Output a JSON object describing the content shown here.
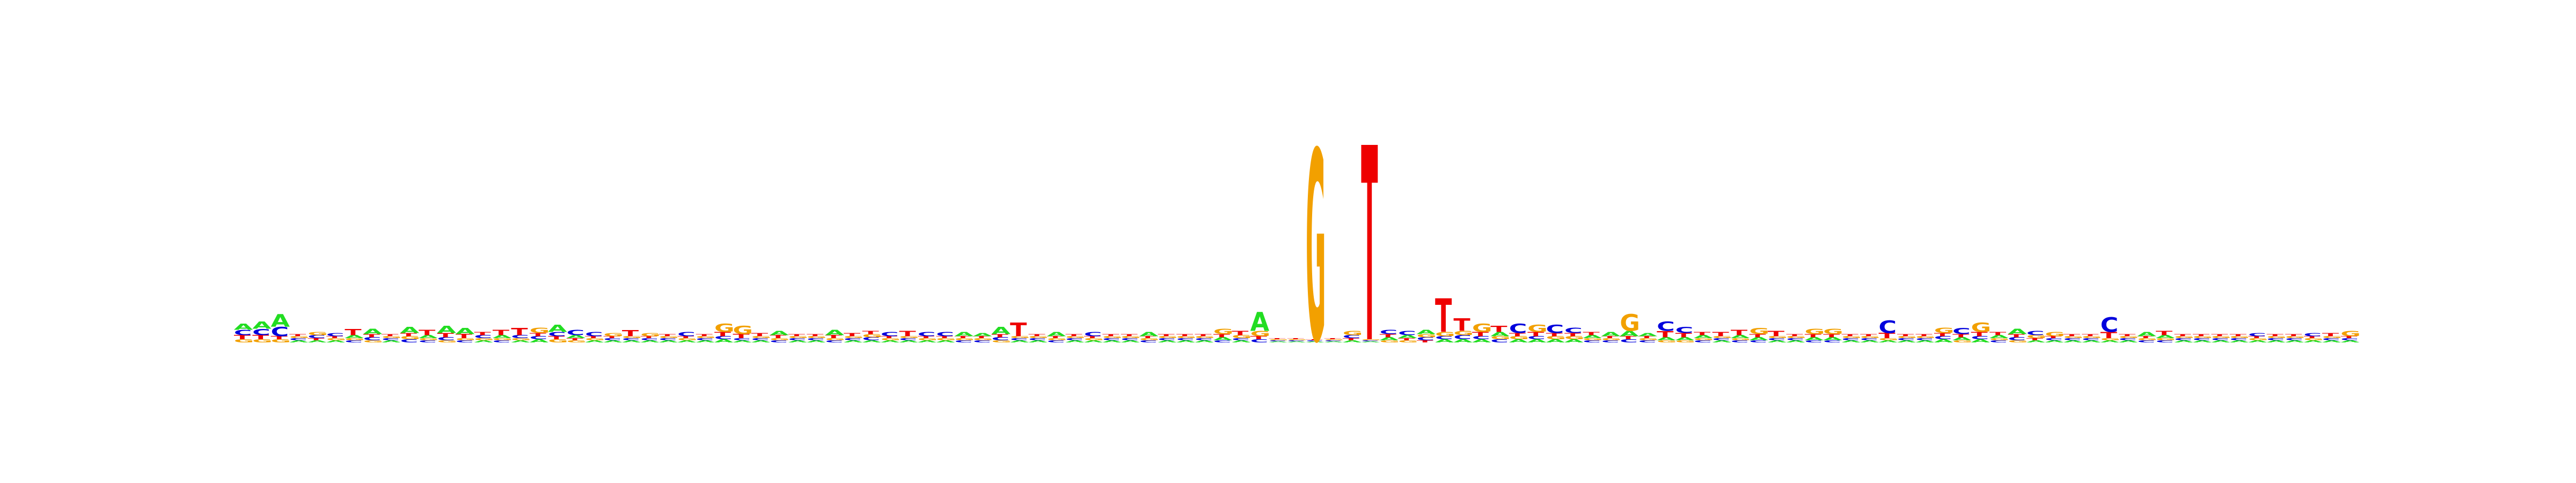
{
  "chart_data": {
    "type": "sequence_logo",
    "title": "",
    "xlabel": "",
    "ylabel": "",
    "alphabet": [
      "A",
      "C",
      "G",
      "T"
    ],
    "colors": {
      "A": "#22dd22",
      "C": "#0000dd",
      "G": "#f2a000",
      "T": "#ee0000"
    },
    "ylim": [
      0,
      2
    ],
    "positions": [
      {
        "pos": 1,
        "letters": {
          "A": 0.06,
          "C": 0.05,
          "G": 0.03,
          "T": 0.04
        }
      },
      {
        "pos": 2,
        "letters": {
          "A": 0.07,
          "C": 0.06,
          "G": 0.03,
          "T": 0.04
        }
      },
      {
        "pos": 3,
        "letters": {
          "A": 0.12,
          "C": 0.09,
          "G": 0.03,
          "T": 0.03
        }
      },
      {
        "pos": 4,
        "letters": {
          "A": 0.02,
          "C": 0.02,
          "G": 0.02,
          "T": 0.02
        }
      },
      {
        "pos": 5,
        "letters": {
          "A": 0.02,
          "C": 0.03,
          "G": 0.03,
          "T": 0.02
        }
      },
      {
        "pos": 6,
        "letters": {
          "A": 0.02,
          "C": 0.03,
          "G": 0.02,
          "T": 0.02
        }
      },
      {
        "pos": 7,
        "letters": {
          "A": 0.03,
          "C": 0.02,
          "G": 0.02,
          "T": 0.06
        }
      },
      {
        "pos": 8,
        "letters": {
          "A": 0.05,
          "C": 0.03,
          "G": 0.02,
          "T": 0.03
        }
      },
      {
        "pos": 9,
        "letters": {
          "A": 0.02,
          "C": 0.02,
          "G": 0.02,
          "T": 0.02
        }
      },
      {
        "pos": 10,
        "letters": {
          "A": 0.06,
          "C": 0.03,
          "G": 0.03,
          "T": 0.03
        }
      },
      {
        "pos": 11,
        "letters": {
          "A": 0.03,
          "C": 0.02,
          "G": 0.02,
          "T": 0.05
        }
      },
      {
        "pos": 12,
        "letters": {
          "A": 0.07,
          "C": 0.03,
          "G": 0.02,
          "T": 0.04
        }
      },
      {
        "pos": 13,
        "letters": {
          "A": 0.06,
          "C": 0.02,
          "G": 0.02,
          "T": 0.04
        }
      },
      {
        "pos": 14,
        "letters": {
          "A": 0.02,
          "C": 0.03,
          "G": 0.02,
          "T": 0.03
        }
      },
      {
        "pos": 15,
        "letters": {
          "A": 0.03,
          "C": 0.02,
          "G": 0.02,
          "T": 0.05
        }
      },
      {
        "pos": 16,
        "letters": {
          "A": 0.02,
          "C": 0.03,
          "G": 0.02,
          "T": 0.07
        }
      },
      {
        "pos": 17,
        "letters": {
          "A": 0.03,
          "C": 0.03,
          "G": 0.05,
          "T": 0.03
        }
      },
      {
        "pos": 18,
        "letters": {
          "A": 0.07,
          "C": 0.04,
          "G": 0.03,
          "T": 0.03
        }
      },
      {
        "pos": 19,
        "letters": {
          "A": 0.03,
          "C": 0.05,
          "G": 0.02,
          "T": 0.02
        }
      },
      {
        "pos": 20,
        "letters": {
          "A": 0.02,
          "C": 0.04,
          "G": 0.02,
          "T": 0.02
        }
      },
      {
        "pos": 21,
        "letters": {
          "A": 0.02,
          "C": 0.02,
          "G": 0.03,
          "T": 0.02
        }
      },
      {
        "pos": 22,
        "letters": {
          "A": 0.02,
          "C": 0.02,
          "G": 0.02,
          "T": 0.06
        }
      },
      {
        "pos": 23,
        "letters": {
          "A": 0.02,
          "C": 0.02,
          "G": 0.03,
          "T": 0.02
        }
      },
      {
        "pos": 24,
        "letters": {
          "A": 0.02,
          "C": 0.02,
          "G": 0.02,
          "T": 0.02
        }
      },
      {
        "pos": 25,
        "letters": {
          "A": 0.02,
          "C": 0.04,
          "G": 0.02,
          "T": 0.02
        }
      },
      {
        "pos": 26,
        "letters": {
          "A": 0.02,
          "C": 0.02,
          "G": 0.02,
          "T": 0.02
        }
      },
      {
        "pos": 27,
        "letters": {
          "A": 0.03,
          "C": 0.03,
          "G": 0.08,
          "T": 0.04
        }
      },
      {
        "pos": 28,
        "letters": {
          "A": 0.02,
          "C": 0.02,
          "G": 0.08,
          "T": 0.04
        }
      },
      {
        "pos": 29,
        "letters": {
          "A": 0.02,
          "C": 0.02,
          "G": 0.02,
          "T": 0.03
        }
      },
      {
        "pos": 30,
        "letters": {
          "A": 0.04,
          "C": 0.02,
          "G": 0.02,
          "T": 0.03
        }
      },
      {
        "pos": 31,
        "letters": {
          "A": 0.02,
          "C": 0.02,
          "G": 0.02,
          "T": 0.02
        }
      },
      {
        "pos": 32,
        "letters": {
          "A": 0.02,
          "C": 0.02,
          "G": 0.02,
          "T": 0.02
        }
      },
      {
        "pos": 33,
        "letters": {
          "A": 0.05,
          "C": 0.02,
          "G": 0.02,
          "T": 0.03
        }
      },
      {
        "pos": 34,
        "letters": {
          "A": 0.02,
          "C": 0.02,
          "G": 0.02,
          "T": 0.03
        }
      },
      {
        "pos": 35,
        "letters": {
          "A": 0.02,
          "C": 0.03,
          "G": 0.03,
          "T": 0.03
        }
      },
      {
        "pos": 36,
        "letters": {
          "A": 0.02,
          "C": 0.04,
          "G": 0.02,
          "T": 0.02
        }
      },
      {
        "pos": 37,
        "letters": {
          "A": 0.02,
          "C": 0.02,
          "G": 0.02,
          "T": 0.05
        }
      },
      {
        "pos": 38,
        "letters": {
          "A": 0.02,
          "C": 0.04,
          "G": 0.02,
          "T": 0.02
        }
      },
      {
        "pos": 39,
        "letters": {
          "A": 0.02,
          "C": 0.04,
          "G": 0.02,
          "T": 0.02
        }
      },
      {
        "pos": 40,
        "letters": {
          "A": 0.04,
          "C": 0.02,
          "G": 0.02,
          "T": 0.02
        }
      },
      {
        "pos": 41,
        "letters": {
          "A": 0.03,
          "C": 0.02,
          "G": 0.02,
          "T": 0.02
        }
      },
      {
        "pos": 42,
        "letters": {
          "A": 0.07,
          "C": 0.03,
          "G": 0.02,
          "T": 0.03
        }
      },
      {
        "pos": 43,
        "letters": {
          "A": 0.02,
          "C": 0.02,
          "G": 0.02,
          "T": 0.13
        }
      },
      {
        "pos": 44,
        "letters": {
          "A": 0.02,
          "C": 0.02,
          "G": 0.02,
          "T": 0.02
        }
      },
      {
        "pos": 45,
        "letters": {
          "A": 0.04,
          "C": 0.02,
          "G": 0.02,
          "T": 0.02
        }
      },
      {
        "pos": 46,
        "letters": {
          "A": 0.02,
          "C": 0.02,
          "G": 0.02,
          "T": 0.02
        }
      },
      {
        "pos": 47,
        "letters": {
          "A": 0.02,
          "C": 0.04,
          "G": 0.02,
          "T": 0.02
        }
      },
      {
        "pos": 48,
        "letters": {
          "A": 0.02,
          "C": 0.02,
          "G": 0.02,
          "T": 0.02
        }
      },
      {
        "pos": 49,
        "letters": {
          "A": 0.02,
          "C": 0.02,
          "G": 0.02,
          "T": 0.02
        }
      },
      {
        "pos": 50,
        "letters": {
          "A": 0.04,
          "C": 0.02,
          "G": 0.02,
          "T": 0.02
        }
      },
      {
        "pos": 51,
        "letters": {
          "A": 0.02,
          "C": 0.02,
          "G": 0.02,
          "T": 0.02
        }
      },
      {
        "pos": 52,
        "letters": {
          "A": 0.02,
          "C": 0.02,
          "G": 0.02,
          "T": 0.02
        }
      },
      {
        "pos": 53,
        "letters": {
          "A": 0.02,
          "C": 0.02,
          "G": 0.02,
          "T": 0.02
        }
      },
      {
        "pos": 54,
        "letters": {
          "A": 0.03,
          "C": 0.02,
          "G": 0.05,
          "T": 0.03
        }
      },
      {
        "pos": 55,
        "letters": {
          "A": 0.02,
          "C": 0.02,
          "G": 0.03,
          "T": 0.04
        }
      },
      {
        "pos": 56,
        "letters": {
          "A": 0.18,
          "C": 0.03,
          "G": 0.05,
          "T": 0.03
        }
      },
      {
        "pos": 57,
        "letters": {
          "A": 0.01,
          "C": 0.01,
          "G": 0.01,
          "T": 0.01
        }
      },
      {
        "pos": 58,
        "letters": {
          "A": 0.01,
          "C": 0.01,
          "G": 0.01,
          "T": 0.01
        }
      },
      {
        "pos": 59,
        "letters": {
          "A": 0.01,
          "C": 0.01,
          "G": 1.82,
          "T": 0.01
        }
      },
      {
        "pos": 60,
        "letters": {
          "A": 0.01,
          "C": 0.01,
          "G": 0.01,
          "T": 0.01
        }
      },
      {
        "pos": 61,
        "letters": {
          "A": 0.02,
          "C": 0.03,
          "G": 0.04,
          "T": 0.02
        }
      },
      {
        "pos": 62,
        "letters": {
          "A": 0.01,
          "C": 0.01,
          "G": 0.01,
          "T": 1.86
        }
      },
      {
        "pos": 63,
        "letters": {
          "A": 0.03,
          "C": 0.04,
          "G": 0.02,
          "T": 0.03
        }
      },
      {
        "pos": 64,
        "letters": {
          "A": 0.03,
          "C": 0.04,
          "G": 0.02,
          "T": 0.02
        }
      },
      {
        "pos": 65,
        "letters": {
          "A": 0.04,
          "C": 0.03,
          "G": 0.03,
          "T": 0.02
        }
      },
      {
        "pos": 66,
        "letters": {
          "A": 0.03,
          "C": 0.03,
          "G": 0.04,
          "T": 0.32
        }
      },
      {
        "pos": 67,
        "letters": {
          "A": 0.03,
          "C": 0.04,
          "G": 0.04,
          "T": 0.12
        }
      },
      {
        "pos": 68,
        "letters": {
          "A": 0.03,
          "C": 0.03,
          "G": 0.08,
          "T": 0.04
        }
      },
      {
        "pos": 69,
        "letters": {
          "A": 0.04,
          "C": 0.03,
          "G": 0.03,
          "T": 0.06
        }
      },
      {
        "pos": 70,
        "letters": {
          "A": 0.03,
          "C": 0.09,
          "G": 0.03,
          "T": 0.03
        }
      },
      {
        "pos": 71,
        "letters": {
          "A": 0.03,
          "C": 0.03,
          "G": 0.07,
          "T": 0.04
        }
      },
      {
        "pos": 72,
        "letters": {
          "A": 0.03,
          "C": 0.08,
          "G": 0.03,
          "T": 0.03
        }
      },
      {
        "pos": 73,
        "letters": {
          "A": 0.03,
          "C": 0.05,
          "G": 0.03,
          "T": 0.03
        }
      },
      {
        "pos": 74,
        "letters": {
          "A": 0.03,
          "C": 0.02,
          "G": 0.02,
          "T": 0.03
        }
      },
      {
        "pos": 75,
        "letters": {
          "A": 0.04,
          "C": 0.02,
          "G": 0.02,
          "T": 0.02
        }
      },
      {
        "pos": 76,
        "letters": {
          "A": 0.05,
          "C": 0.03,
          "G": 0.16,
          "T": 0.03
        }
      },
      {
        "pos": 77,
        "letters": {
          "A": 0.03,
          "C": 0.02,
          "G": 0.02,
          "T": 0.02
        }
      },
      {
        "pos": 78,
        "letters": {
          "A": 0.03,
          "C": 0.09,
          "G": 0.02,
          "T": 0.06
        }
      },
      {
        "pos": 79,
        "letters": {
          "A": 0.03,
          "C": 0.06,
          "G": 0.02,
          "T": 0.04
        }
      },
      {
        "pos": 80,
        "letters": {
          "A": 0.03,
          "C": 0.02,
          "G": 0.02,
          "T": 0.03
        }
      },
      {
        "pos": 81,
        "letters": {
          "A": 0.02,
          "C": 0.02,
          "G": 0.02,
          "T": 0.04
        }
      },
      {
        "pos": 82,
        "letters": {
          "A": 0.03,
          "C": 0.02,
          "G": 0.02,
          "T": 0.05
        }
      },
      {
        "pos": 83,
        "letters": {
          "A": 0.03,
          "C": 0.02,
          "G": 0.06,
          "T": 0.03
        }
      },
      {
        "pos": 84,
        "letters": {
          "A": 0.02,
          "C": 0.02,
          "G": 0.02,
          "T": 0.05
        }
      },
      {
        "pos": 85,
        "letters": {
          "A": 0.02,
          "C": 0.02,
          "G": 0.02,
          "T": 0.02
        }
      },
      {
        "pos": 86,
        "letters": {
          "A": 0.03,
          "C": 0.02,
          "G": 0.05,
          "T": 0.03
        }
      },
      {
        "pos": 87,
        "letters": {
          "A": 0.03,
          "C": 0.02,
          "G": 0.05,
          "T": 0.03
        }
      },
      {
        "pos": 88,
        "letters": {
          "A": 0.02,
          "C": 0.02,
          "G": 0.02,
          "T": 0.02
        }
      },
      {
        "pos": 89,
        "letters": {
          "A": 0.02,
          "C": 0.02,
          "G": 0.02,
          "T": 0.02
        }
      },
      {
        "pos": 90,
        "letters": {
          "A": 0.02,
          "C": 0.12,
          "G": 0.02,
          "T": 0.05
        }
      },
      {
        "pos": 91,
        "letters": {
          "A": 0.02,
          "C": 0.02,
          "G": 0.02,
          "T": 0.02
        }
      },
      {
        "pos": 92,
        "letters": {
          "A": 0.02,
          "C": 0.02,
          "G": 0.02,
          "T": 0.02
        }
      },
      {
        "pos": 93,
        "letters": {
          "A": 0.03,
          "C": 0.03,
          "G": 0.05,
          "T": 0.03
        }
      },
      {
        "pos": 94,
        "letters": {
          "A": 0.03,
          "C": 0.06,
          "G": 0.02,
          "T": 0.03
        }
      },
      {
        "pos": 95,
        "letters": {
          "A": 0.03,
          "C": 0.03,
          "G": 0.09,
          "T": 0.04
        }
      },
      {
        "pos": 96,
        "letters": {
          "A": 0.03,
          "C": 0.02,
          "G": 0.02,
          "T": 0.03
        }
      },
      {
        "pos": 97,
        "letters": {
          "A": 0.05,
          "C": 0.03,
          "G": 0.02,
          "T": 0.03
        }
      },
      {
        "pos": 98,
        "letters": {
          "A": 0.02,
          "C": 0.04,
          "G": 0.03,
          "T": 0.02
        }
      },
      {
        "pos": 99,
        "letters": {
          "A": 0.02,
          "C": 0.02,
          "G": 0.04,
          "T": 0.02
        }
      },
      {
        "pos": 100,
        "letters": {
          "A": 0.02,
          "C": 0.02,
          "G": 0.02,
          "T": 0.02
        }
      },
      {
        "pos": 101,
        "letters": {
          "A": 0.02,
          "C": 0.02,
          "G": 0.02,
          "T": 0.02
        }
      },
      {
        "pos": 102,
        "letters": {
          "A": 0.02,
          "C": 0.14,
          "G": 0.02,
          "T": 0.06
        }
      },
      {
        "pos": 103,
        "letters": {
          "A": 0.02,
          "C": 0.02,
          "G": 0.02,
          "T": 0.02
        }
      },
      {
        "pos": 104,
        "letters": {
          "A": 0.04,
          "C": 0.02,
          "G": 0.02,
          "T": 0.02
        }
      },
      {
        "pos": 105,
        "letters": {
          "A": 0.03,
          "C": 0.02,
          "G": 0.02,
          "T": 0.04
        }
      },
      {
        "pos": 106,
        "letters": {
          "A": 0.02,
          "C": 0.02,
          "G": 0.02,
          "T": 0.02
        }
      },
      {
        "pos": 107,
        "letters": {
          "A": 0.02,
          "C": 0.02,
          "G": 0.02,
          "T": 0.02
        }
      },
      {
        "pos": 108,
        "letters": {
          "A": 0.02,
          "C": 0.02,
          "G": 0.02,
          "T": 0.02
        }
      },
      {
        "pos": 109,
        "letters": {
          "A": 0.02,
          "C": 0.02,
          "G": 0.02,
          "T": 0.02
        }
      },
      {
        "pos": 110,
        "letters": {
          "A": 0.02,
          "C": 0.03,
          "G": 0.02,
          "T": 0.02
        }
      },
      {
        "pos": 111,
        "letters": {
          "A": 0.02,
          "C": 0.02,
          "G": 0.02,
          "T": 0.02
        }
      },
      {
        "pos": 112,
        "letters": {
          "A": 0.02,
          "C": 0.02,
          "G": 0.02,
          "T": 0.02
        }
      },
      {
        "pos": 113,
        "letters": {
          "A": 0.02,
          "C": 0.03,
          "G": 0.02,
          "T": 0.02
        }
      },
      {
        "pos": 114,
        "letters": {
          "A": 0.02,
          "C": 0.02,
          "G": 0.02,
          "T": 0.03
        }
      },
      {
        "pos": 115,
        "letters": {
          "A": 0.02,
          "C": 0.02,
          "G": 0.05,
          "T": 0.02
        }
      }
    ]
  }
}
